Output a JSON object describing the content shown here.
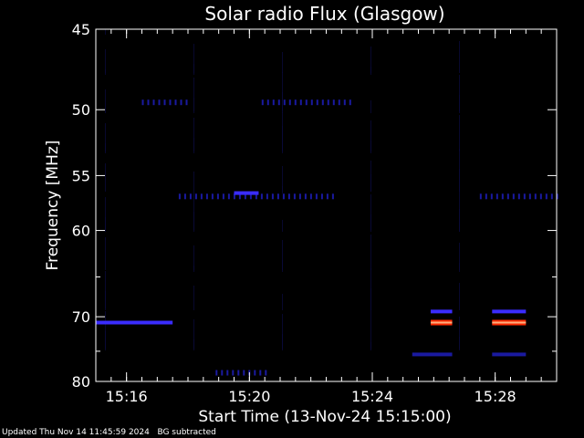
{
  "chart_data": {
    "type": "heatmap",
    "title": "Solar radio Flux (Glasgow)",
    "xlabel": "Start Time (13-Nov-24 15:15:00)",
    "ylabel": "Frequency [MHz]",
    "x_unit": "minutes after 15:15:00",
    "xlim": [
      0,
      15
    ],
    "ylim": [
      45,
      80
    ],
    "y_reciprocal_scale": true,
    "x_ticks": [
      {
        "value": 1,
        "label": "15:16"
      },
      {
        "value": 5,
        "label": "15:20"
      },
      {
        "value": 9,
        "label": "15:24"
      },
      {
        "value": 13,
        "label": "15:28"
      }
    ],
    "y_ticks": [
      {
        "value": 45,
        "label": "45"
      },
      {
        "value": 50,
        "label": "50"
      },
      {
        "value": 55,
        "label": "55"
      },
      {
        "value": 60,
        "label": "60"
      },
      {
        "value": 70,
        "label": "70"
      },
      {
        "value": 80,
        "label": "80"
      }
    ],
    "features": [
      {
        "name": "band-50mhz-a",
        "x_start": 1.5,
        "x_end": 3.0,
        "freq": 49.5,
        "level": "low",
        "dashed": true
      },
      {
        "name": "band-50mhz-b",
        "x_start": 5.4,
        "x_end": 8.4,
        "freq": 49.5,
        "level": "low",
        "dashed": true
      },
      {
        "name": "band-56mhz",
        "x_start": 2.7,
        "x_end": 7.7,
        "freq": 56.8,
        "level": "low",
        "dashed": true
      },
      {
        "name": "burst-56mhz",
        "x_start": 4.5,
        "x_end": 5.3,
        "freq": 56.5,
        "level": "medium",
        "dashed": false
      },
      {
        "name": "band-56mhz-right",
        "x_start": 12.5,
        "x_end": 15.0,
        "freq": 56.8,
        "level": "low",
        "dashed": true
      },
      {
        "name": "band-70mhz-left",
        "x_start": 0.0,
        "x_end": 2.5,
        "freq": 70.8,
        "level": "medium",
        "dashed": false
      },
      {
        "name": "band-69mhz-a",
        "x_start": 10.9,
        "x_end": 11.6,
        "freq": 69.3,
        "level": "medium",
        "dashed": false
      },
      {
        "name": "band-69mhz-b",
        "x_start": 12.9,
        "x_end": 14.0,
        "freq": 69.3,
        "level": "medium",
        "dashed": false
      },
      {
        "name": "band-71mhz-a",
        "x_start": 10.9,
        "x_end": 11.6,
        "freq": 70.8,
        "level": "high",
        "dashed": false
      },
      {
        "name": "band-71mhz-b",
        "x_start": 12.9,
        "x_end": 14.0,
        "freq": 70.8,
        "level": "high",
        "dashed": false
      },
      {
        "name": "band-75mhz-a",
        "x_start": 10.3,
        "x_end": 11.6,
        "freq": 75.5,
        "level": "low",
        "dashed": false
      },
      {
        "name": "band-75mhz-b",
        "x_start": 12.9,
        "x_end": 14.0,
        "freq": 75.5,
        "level": "low",
        "dashed": false
      },
      {
        "name": "streaks-bottom",
        "x_start": 3.9,
        "x_end": 5.6,
        "freq": 78.5,
        "level": "low",
        "dashed": true
      }
    ],
    "colors": {
      "background": "#000000",
      "axis": "#ffffff",
      "low": "#1a1aa0",
      "medium": "#3a2cff",
      "high_outer": "#ff2a00",
      "high_core": "#ffb080"
    }
  },
  "footer": {
    "updated": "Updated Thu Nov 14 11:45:59 2024",
    "note": "BG subtracted"
  }
}
